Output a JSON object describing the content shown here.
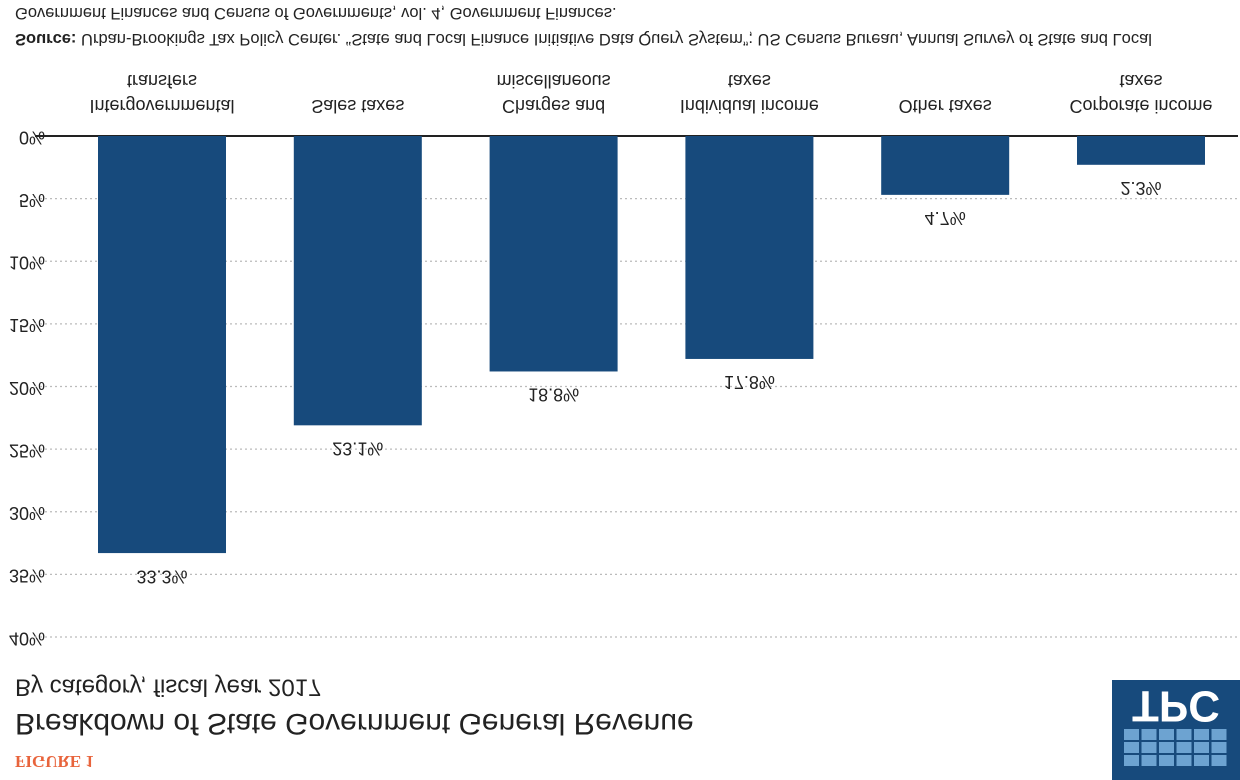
{
  "chart_data": {
    "type": "bar",
    "figure_label": "FIGURE 1",
    "title": "Breakdown of State Government General Revenue",
    "subtitle": "By category, fiscal year 2017",
    "logo_text": "TPC",
    "categories": [
      "Intergovernmental\ntransfers",
      "Sales taxes",
      "Charges and\nmiscellaneous",
      "Individual income\ntaxes",
      "Other taxes",
      "Corporate income\ntaxes"
    ],
    "values": [
      33.3,
      23.1,
      18.8,
      17.8,
      4.7,
      2.3
    ],
    "value_labels": [
      "33.3%",
      "23.1%",
      "18.8%",
      "17.8%",
      "4.7%",
      "2.3%"
    ],
    "color": "#174a7c",
    "ylim": [
      0,
      40
    ],
    "yticks": [
      {
        "value": 0,
        "label": "0%"
      },
      {
        "value": 5,
        "label": "5%"
      },
      {
        "value": 10,
        "label": "10%"
      },
      {
        "value": 15,
        "label": "15%"
      },
      {
        "value": 20,
        "label": "20%"
      },
      {
        "value": 25,
        "label": "25%"
      },
      {
        "value": 30,
        "label": "30%"
      },
      {
        "value": 35,
        "label": "35%"
      },
      {
        "value": 40,
        "label": "40%"
      }
    ],
    "grid": true,
    "source_label": "Source:",
    "source": "Urban-Brookings Tax Policy Center. “State and Local Finance Initiative Data Query System”; US Census Bureau, Annual Survey of State and Local Government Finances and Census of Governments, vol. 4, Government Finances."
  }
}
